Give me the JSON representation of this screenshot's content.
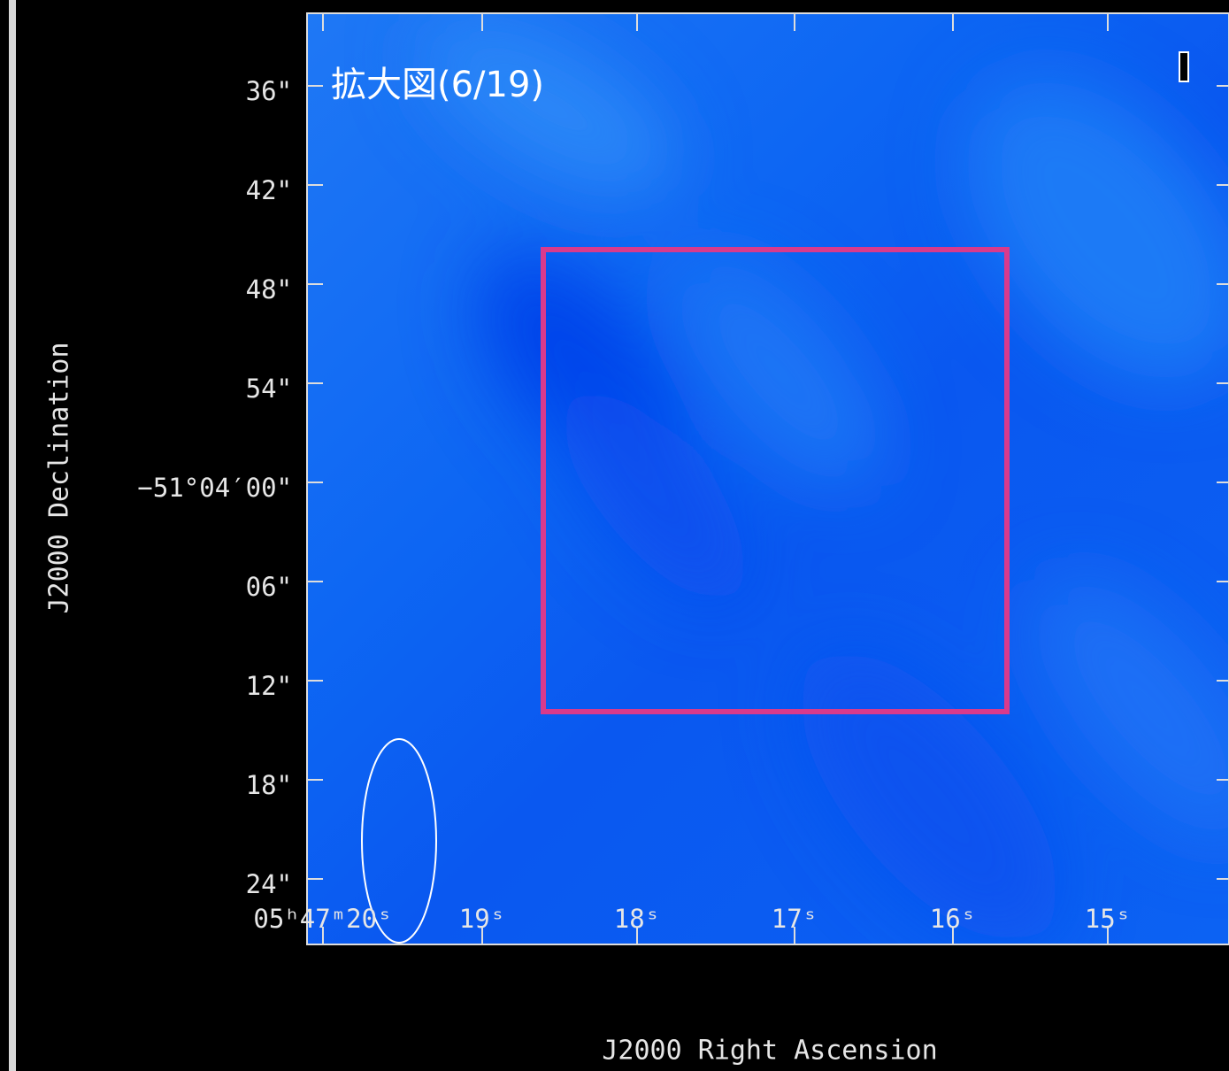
{
  "annotation": "拡大図(6/19)",
  "x_axis": {
    "label": "J2000 Right Ascension",
    "ticks": [
      "05ʰ47ᵐ20ˢ",
      "19ˢ",
      "18ˢ",
      "17ˢ",
      "16ˢ",
      "15ˢ"
    ]
  },
  "y_axis": {
    "label": "J2000 Declination",
    "ticks": [
      "36\"",
      "42\"",
      "48\"",
      "54\"",
      "−51°04′00\"",
      "06\"",
      "12\"",
      "18\"",
      "24\""
    ]
  }
}
